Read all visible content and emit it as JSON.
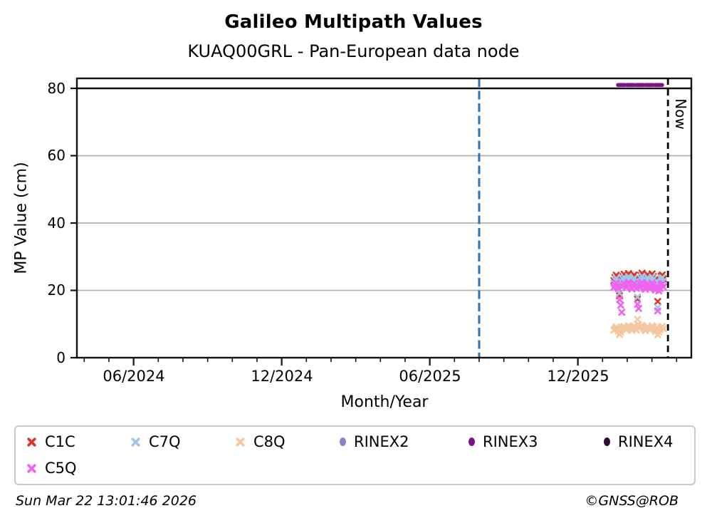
{
  "header": {
    "title": "Galileo Multipath Values",
    "subtitle": "KUAQ00GRL - Pan-European data node"
  },
  "footer": {
    "timestamp": "Sun Mar 22 13:01:46 2026",
    "credit": "©GNSS@ROB"
  },
  "legend": {
    "items": [
      {
        "label": "C1C",
        "marker": "x",
        "color": "#de3423"
      },
      {
        "label": "C7Q",
        "marker": "x",
        "color": "#9fc6e8"
      },
      {
        "label": "C8Q",
        "marker": "x",
        "color": "#f4c7a0"
      },
      {
        "label": "RINEX2",
        "marker": "dot",
        "color": "#8a85c9"
      },
      {
        "label": "RINEX3",
        "marker": "dot",
        "color": "#7c1386"
      },
      {
        "label": "RINEX4",
        "marker": "dot",
        "color": "#2d0b33"
      },
      {
        "label": "C5Q",
        "marker": "x",
        "color": "#ef64ef"
      }
    ]
  },
  "chart_data": {
    "type": "scatter",
    "title": "Galileo Multipath Values",
    "subtitle": "KUAQ00GRL - Pan-European data node",
    "xlabel": "Month/Year",
    "ylabel": "MP Value (cm)",
    "ylim": [
      0,
      83
    ],
    "grid": "horizontal-only",
    "yticks": [
      {
        "label": "80",
        "value": 80
      },
      {
        "label": "60",
        "value": 60
      },
      {
        "label": "40",
        "value": 40
      },
      {
        "label": "20",
        "value": 20
      },
      {
        "label": "0",
        "value": 0
      }
    ],
    "x_axis": {
      "month0_date": "2024-04-01",
      "major_ticks": [
        {
          "label": "06/2024",
          "month": 2
        },
        {
          "label": "12/2024",
          "month": 8
        },
        {
          "label": "06/2025",
          "month": 14
        },
        {
          "label": "12/2025",
          "month": 20
        }
      ],
      "minor_tick_months": [
        0,
        1,
        3,
        4,
        5,
        6,
        7,
        9,
        10,
        11,
        12,
        13,
        15,
        16,
        17,
        18,
        19,
        21,
        22,
        23,
        24
      ]
    },
    "reference_lines": {
      "horizontal_dark_line_value": 80,
      "horizontal_dark_color": "#111111",
      "vertical_dashed_start": {
        "date": "08/2025",
        "month": 16,
        "color": "#2474b6"
      },
      "vertical_dashed_now": {
        "label": "Now",
        "month": 23.65,
        "color": "#000000"
      }
    },
    "x_start_date": "2026-01-15",
    "x_unit": "days since x_start_date",
    "x_days": [
      0,
      1.4,
      2.8,
      4.2,
      5.5,
      6.9,
      8.3,
      9.7,
      11.1,
      12.5,
      13.9,
      15.2,
      16.6,
      18,
      19.4,
      20.8,
      22.2,
      23.6,
      24.9,
      26.3,
      27.7,
      29.1,
      30.5,
      31.9,
      33.3,
      34.6,
      36,
      37.4,
      38.8,
      40.2,
      41.6,
      43,
      44.3,
      45.7,
      47.1,
      48.5,
      49.9,
      51.3,
      52.7,
      54,
      55.4,
      56.8,
      58.2,
      59.6,
      61
    ],
    "series": [
      {
        "name": "C1C",
        "marker": "x",
        "color": "#de3423",
        "values": [
          22.9,
          23.8,
          24.5,
          23.2,
          22.4,
          18.4,
          21.9,
          23.4,
          24.1,
          24.8,
          23.7,
          22.9,
          24.3,
          25,
          24.2,
          23.1,
          22.5,
          23.9,
          24.6,
          23.4,
          22.7,
          17.4,
          21.5,
          23,
          24.4,
          25.1,
          24,
          23.2,
          22.6,
          23.8,
          24.7,
          23.5,
          22.8,
          23.3,
          24.9,
          24.1,
          23,
          22.3,
          23.6,
          16.7,
          21.2,
          22.8,
          24.2,
          24.6,
          23.4
        ]
      },
      {
        "name": "C7Q",
        "marker": "x",
        "color": "#9fc6e8",
        "values": [
          22.1,
          23,
          23.6,
          22.4,
          21.7,
          19.2,
          21.2,
          22.6,
          23.3,
          23.9,
          22.9,
          22.2,
          23.5,
          24.1,
          23.4,
          22.3,
          21.8,
          23.1,
          23.7,
          22.6,
          21.9,
          18,
          20.8,
          22.3,
          23.5,
          24.2,
          23.2,
          22.4,
          21.9,
          23,
          23.8,
          22.7,
          22,
          22.5,
          24,
          23.3,
          22.2,
          21.6,
          22.8,
          14.9,
          20.5,
          22,
          23.4,
          23.8,
          22.6
        ]
      },
      {
        "name": "C8Q",
        "marker": "x",
        "color": "#f4c7a0",
        "values": [
          8.2,
          8.6,
          9.1,
          8.5,
          7.9,
          6.9,
          7.6,
          8.4,
          8.9,
          9.3,
          8.8,
          8.3,
          9,
          9.5,
          9.2,
          8.6,
          8.1,
          8.8,
          9.4,
          8.7,
          8.2,
          11.4,
          9.8,
          8.9,
          9.2,
          9.6,
          9,
          8.5,
          8,
          8.7,
          9.3,
          8.8,
          8.3,
          8.6,
          9.5,
          9.1,
          8.4,
          7.8,
          8.8,
          6.8,
          7.7,
          8.4,
          9,
          9.3,
          8.6
        ]
      },
      {
        "name": "C5Q",
        "marker": "x",
        "color": "#ef64ef",
        "values": [
          20.9,
          21.6,
          22.2,
          21.1,
          20.5,
          17.3,
          15.6,
          13.5,
          21.3,
          22,
          21.5,
          20.8,
          21.9,
          22.4,
          21.7,
          20.9,
          20.4,
          21.6,
          22.1,
          21.2,
          20.6,
          15.9,
          14.6,
          20.9,
          21.8,
          22.3,
          21.4,
          20.7,
          20.3,
          21.5,
          22,
          21.1,
          20.5,
          21,
          22.2,
          21.6,
          20.6,
          20.1,
          21.3,
          13.9,
          19.8,
          20.6,
          21.7,
          22,
          21
        ]
      },
      {
        "name": "RINEX2",
        "marker": "dot",
        "color": "#8a85c9",
        "values": []
      },
      {
        "name": "RINEX3",
        "marker": "line",
        "color": "#7c1386",
        "line": {
          "x_days_start": 5,
          "x_days_end": 60,
          "value": 81
        }
      },
      {
        "name": "RINEX4",
        "marker": "dot",
        "color": "#2d0b33",
        "values": []
      }
    ],
    "now_label": "Now"
  }
}
